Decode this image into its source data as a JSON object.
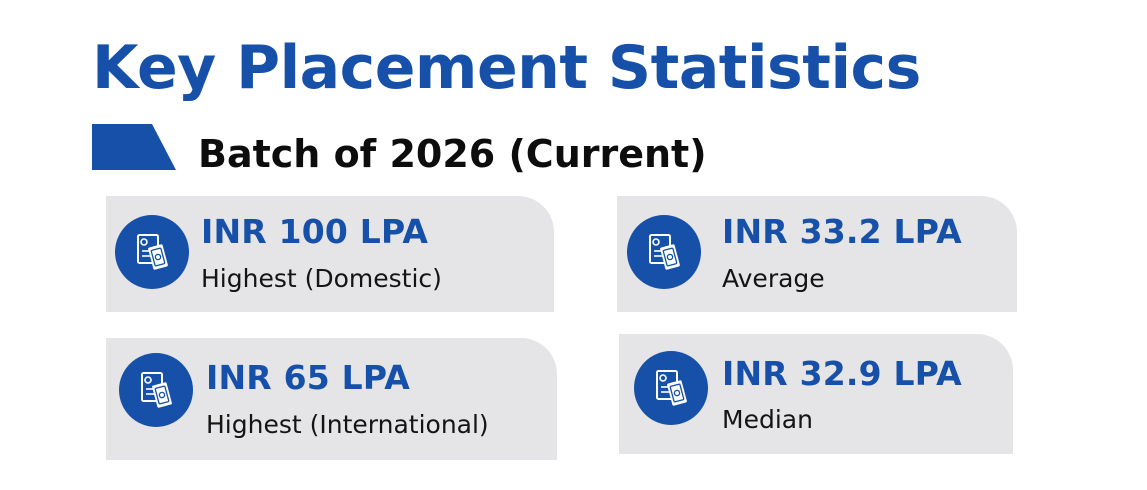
{
  "header": {
    "title": "Key Placement Statistics",
    "subtitle": "Batch of 2026 (Current)"
  },
  "colors": {
    "brand_blue": "#1650a8",
    "card_background": "#e5e5e7",
    "text_dark": "#141414"
  },
  "stats": [
    {
      "value": "INR 100 LPA",
      "label": "Highest (Domestic)",
      "icon": "salary-document-icon"
    },
    {
      "value": "INR 33.2 LPA",
      "label": "Average",
      "icon": "salary-document-icon"
    },
    {
      "value": "INR 65 LPA",
      "label": "Highest (International)",
      "icon": "salary-document-icon"
    },
    {
      "value": "INR 32.9 LPA",
      "label": "Median",
      "icon": "salary-document-icon"
    }
  ]
}
